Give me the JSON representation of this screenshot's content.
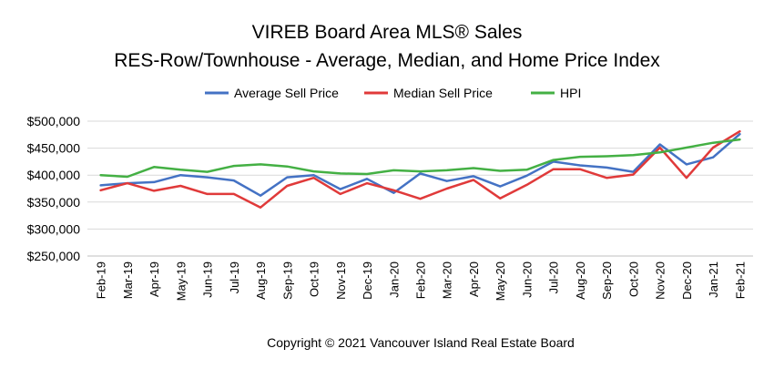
{
  "chart_data": {
    "type": "line",
    "title": "VIREB Board Area MLS® Sales",
    "subtitle": "RES-Row/Townhouse - Average, Median, and Home Price Index",
    "xlabel": "",
    "ylabel": "",
    "ylim": [
      250000,
      500000
    ],
    "yticks": [
      "$500,000",
      "$450,000",
      "$400,000",
      "$350,000",
      "$300,000",
      "$250,000"
    ],
    "ytick_values": [
      500000,
      450000,
      400000,
      350000,
      300000,
      250000
    ],
    "grid": true,
    "legend_position": "top",
    "categories": [
      "Feb-19",
      "Mar-19",
      "Apr-19",
      "May-19",
      "Jun-19",
      "Jul-19",
      "Aug-19",
      "Sep-19",
      "Oct-19",
      "Nov-19",
      "Dec-19",
      "Jan-20",
      "Feb-20",
      "Mar-20",
      "Apr-20",
      "May-20",
      "Jun-20",
      "Jul-20",
      "Aug-20",
      "Sep-20",
      "Oct-20",
      "Nov-20",
      "Dec-20",
      "Jan-21",
      "Feb-21"
    ],
    "series": [
      {
        "name": "Average Sell Price",
        "color": "#4472c4",
        "values": [
          381000,
          385000,
          387000,
          400000,
          396000,
          390000,
          362000,
          396000,
          400000,
          374000,
          393000,
          367000,
          403000,
          389000,
          398000,
          379000,
          399000,
          425000,
          418000,
          414000,
          406000,
          457000,
          420000,
          433000,
          476000
        ]
      },
      {
        "name": "Median Sell Price",
        "color": "#e03a3a",
        "values": [
          372000,
          385000,
          371000,
          380000,
          365000,
          365000,
          340000,
          380000,
          395000,
          365000,
          385000,
          372000,
          356000,
          375000,
          391000,
          357000,
          382000,
          411000,
          411000,
          395000,
          401000,
          451000,
          395000,
          451000,
          481000
        ]
      },
      {
        "name": "HPI",
        "color": "#44b044",
        "values": [
          400000,
          397000,
          415000,
          410000,
          406000,
          417000,
          420000,
          416000,
          407000,
          403000,
          402000,
          409000,
          407000,
          409000,
          413000,
          408000,
          410000,
          428000,
          434000,
          435000,
          437000,
          442000,
          451000,
          460000,
          466000
        ]
      }
    ]
  },
  "footer": "Copyright © 2021 Vancouver Island Real Estate Board"
}
